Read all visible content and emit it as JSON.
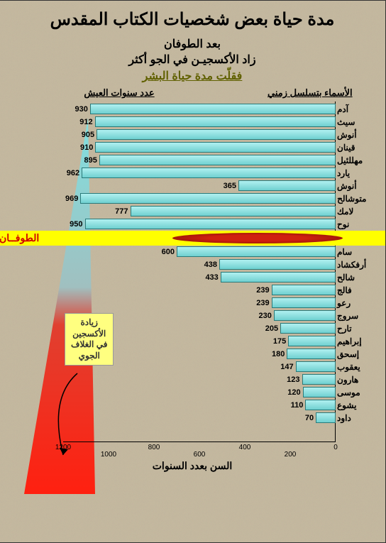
{
  "title": "مدة حياة بعض شخصيات الكتاب المقدس",
  "subtitle": {
    "l1": "بعد الطوفان",
    "l2": "زاد الأكسجيـن في الجو أكثر",
    "l3": "فقلّت مدة حياة البشر"
  },
  "headers": {
    "right": "الأسماء بتسلسل زمني",
    "left": "عدد سنوات العيش"
  },
  "xlabel": "السن بعدد السنوات",
  "flood_label": "الطوفــان",
  "note": "زيادة\nالأكسجين\nفي الغلاف\nالجوي",
  "xmax": 1200,
  "xticks_major": [
    0,
    400,
    800,
    1200
  ],
  "xticks_minor": [
    200,
    600,
    1000
  ],
  "bar_color_top": "#b0f0f0",
  "bar_color_bottom": "#70d0d0",
  "bar_border": "#2a7a7a",
  "flood_bg": "#ffff00",
  "flood_text": "#d00000",
  "ellipse_c1": "#d02010",
  "ellipse_c2": "#7a1005",
  "note_bg": "#ffff80",
  "tri_top": "#80e0e0",
  "tri_bot": "#ff2010",
  "flood_after_index": 9,
  "people": [
    {
      "name": "آدم",
      "v": 930
    },
    {
      "name": "سيث",
      "v": 912
    },
    {
      "name": "أنوش",
      "v": 905
    },
    {
      "name": "قينان",
      "v": 910
    },
    {
      "name": "مهللئيل",
      "v": 895
    },
    {
      "name": "يارد",
      "v": 962
    },
    {
      "name": "أنوش",
      "v": 365
    },
    {
      "name": "متوشالح",
      "v": 969
    },
    {
      "name": "لامك",
      "v": 777
    },
    {
      "name": "نوح",
      "v": 950
    },
    {
      "name": "سام",
      "v": 600
    },
    {
      "name": "أرفكشاد",
      "v": 438
    },
    {
      "name": "شالح",
      "v": 433
    },
    {
      "name": "فالج",
      "v": 239
    },
    {
      "name": "رعو",
      "v": 239
    },
    {
      "name": "سروج",
      "v": 230
    },
    {
      "name": "تارح",
      "v": 205
    },
    {
      "name": "إبراهيم",
      "v": 175
    },
    {
      "name": "إسحق",
      "v": 180
    },
    {
      "name": "يعقوب",
      "v": 147
    },
    {
      "name": "هارون",
      "v": 123
    },
    {
      "name": "موسى",
      "v": 120
    },
    {
      "name": "يشوع",
      "v": 110
    },
    {
      "name": "داود",
      "v": 70
    }
  ]
}
